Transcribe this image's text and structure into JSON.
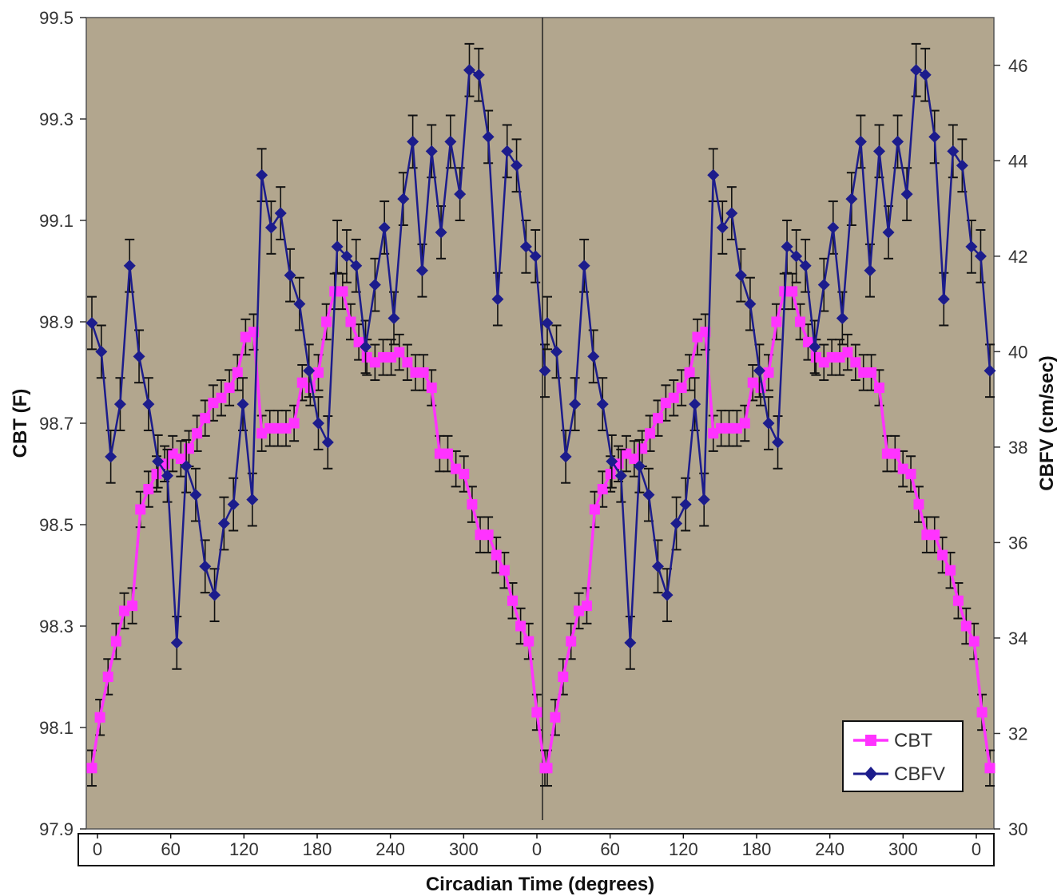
{
  "chart_data": {
    "type": "line",
    "x_label": "Circadian Time (degrees)",
    "y_left_label": "CBT (F)",
    "y_right_label": "CBFV (cm/sec)",
    "y_left_range": [
      97.9,
      99.5
    ],
    "y_left_ticks": [
      "97.9",
      "98.1",
      "98.3",
      "98.5",
      "98.7",
      "98.9",
      "99.1",
      "99.3",
      "99.5"
    ],
    "y_right_range": [
      30,
      47
    ],
    "y_right_ticks": [
      "30",
      "32",
      "34",
      "36",
      "38",
      "40",
      "42",
      "44",
      "46"
    ],
    "x_tick_labels": [
      "0",
      "60",
      "120",
      "180",
      "240",
      "300",
      "0",
      "60",
      "120",
      "180",
      "240",
      "300",
      "0"
    ],
    "plot_background": "#b2a68e",
    "series": [
      {
        "name": "CBT",
        "axis": "left",
        "color": "#ff33ff",
        "marker": "square",
        "values": [
          98.02,
          98.12,
          98.2,
          98.27,
          98.33,
          98.34,
          98.53,
          98.57,
          98.6,
          98.62,
          98.64,
          98.63,
          98.65,
          98.68,
          98.71,
          98.74,
          98.75,
          98.77,
          98.8,
          98.87,
          98.88,
          98.68,
          98.69,
          98.69,
          98.69,
          98.7,
          98.78,
          98.77,
          98.8,
          98.9,
          98.96,
          98.96,
          98.9,
          98.86,
          98.83,
          98.82,
          98.83,
          98.83,
          98.84,
          98.82,
          98.8,
          98.8,
          98.77,
          98.64,
          98.64,
          98.61,
          98.6,
          98.54,
          98.48,
          98.48,
          98.44,
          98.41,
          98.35,
          98.3,
          98.27,
          98.13,
          98.02
        ]
      },
      {
        "name": "CBFV",
        "axis": "right",
        "color": "#1c1c8c",
        "marker": "diamond",
        "values": [
          40.6,
          40.0,
          37.8,
          38.9,
          41.8,
          39.9,
          38.9,
          37.7,
          37.4,
          33.9,
          37.6,
          37.0,
          35.5,
          34.9,
          36.4,
          36.8,
          38.9,
          36.9,
          43.7,
          42.6,
          42.9,
          41.6,
          41.0,
          39.6,
          38.5,
          38.1,
          42.2,
          42.0,
          41.8,
          40.1,
          41.4,
          42.6,
          40.7,
          43.2,
          44.4,
          41.7,
          44.2,
          42.5,
          44.4,
          43.3,
          45.9,
          45.8,
          44.5,
          41.1,
          44.2,
          43.9,
          42.2,
          42.0,
          39.6
        ]
      }
    ],
    "legend": {
      "position": "bottom-right",
      "entries": [
        "CBT",
        "CBFV"
      ]
    }
  }
}
